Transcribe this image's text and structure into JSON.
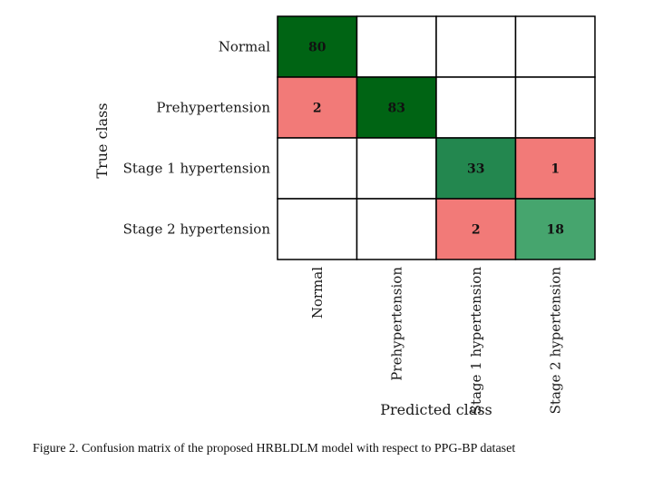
{
  "chart_data": {
    "type": "heatmap",
    "title": "",
    "xlabel": "Predicted class",
    "ylabel": "True class",
    "x_categories": [
      "Normal",
      "Prehypertension",
      "Stage 1 hypertension",
      "Stage 2 hypertension"
    ],
    "y_categories": [
      "Normal",
      "Prehypertension",
      "Stage 1 hypertension",
      "Stage 2 hypertension"
    ],
    "matrix": [
      [
        80,
        null,
        null,
        null
      ],
      [
        2,
        83,
        null,
        null
      ],
      [
        null,
        null,
        33,
        1
      ],
      [
        null,
        null,
        2,
        18
      ]
    ],
    "colors": {
      "high": "#006414",
      "mid_high": "#23874f",
      "mid": "#46a56e",
      "error": "#f27a78",
      "empty": "#ffffff",
      "border": "#000000"
    }
  },
  "caption": "Figure 2.   Confusion matrix of the proposed HRBLDLM model with respect to PPG-BP dataset"
}
